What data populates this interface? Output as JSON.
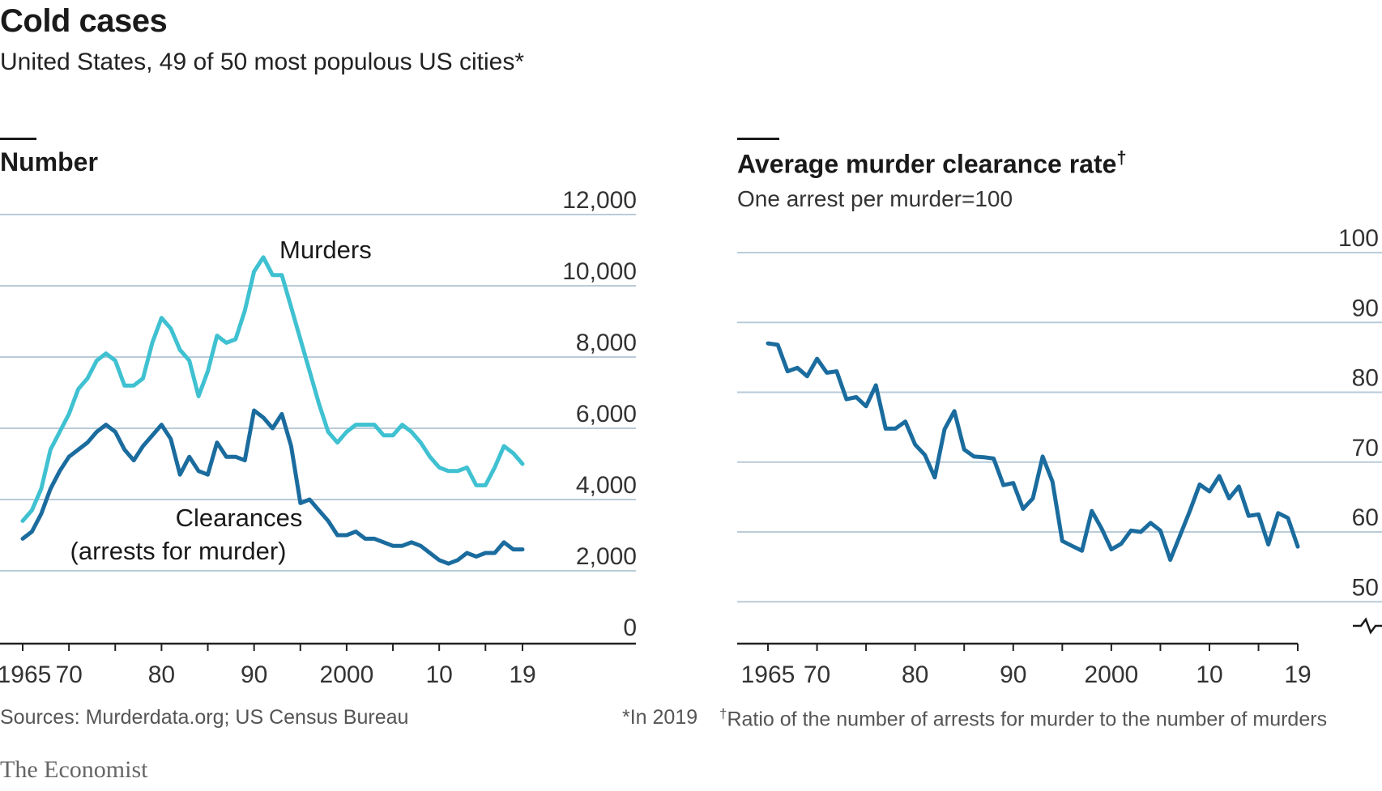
{
  "title": "Cold cases",
  "subtitle": "United States, 49 of 50 most populous US cities*",
  "sources": "Sources: Murderdata.org; US Census Bureau",
  "footnote_star": "*In 2019",
  "footnote_dagger_mark": "†",
  "footnote_dagger": "Ratio of the number of arrests for murder to the number of murders",
  "brand": "The Economist",
  "colors": {
    "murders": "#3fc1d1",
    "clearances": "#1b6c9e",
    "rate": "#1b6c9e",
    "grid": "#b9cbd8",
    "axis": "#222222"
  },
  "chart_data": [
    {
      "type": "line",
      "title": "Number",
      "ylim": [
        0,
        12000
      ],
      "y_ticks": [
        0,
        2000,
        4000,
        6000,
        8000,
        10000,
        12000
      ],
      "y_tick_labels": [
        "0",
        "2,000",
        "4,000",
        "6,000",
        "8,000",
        "10,000",
        "12,000"
      ],
      "x_tick_values": [
        1965,
        1970,
        1980,
        1990,
        2000,
        2010,
        2019
      ],
      "x_tick_labels": [
        "1965",
        "70",
        "80",
        "90",
        "2000",
        "10",
        "19"
      ],
      "series": [
        {
          "name": "Murders",
          "x": [
            1965,
            1966,
            1967,
            1968,
            1969,
            1970,
            1971,
            1972,
            1973,
            1974,
            1975,
            1976,
            1977,
            1978,
            1979,
            1980,
            1981,
            1982,
            1983,
            1984,
            1985,
            1986,
            1987,
            1988,
            1989,
            1990,
            1991,
            1992,
            1993,
            1994,
            1995,
            1996,
            1997,
            1998,
            1999,
            2000,
            2001,
            2002,
            2003,
            2004,
            2005,
            2006,
            2007,
            2008,
            2009,
            2010,
            2011,
            2012,
            2013,
            2014,
            2015,
            2016,
            2017,
            2018,
            2019
          ],
          "values": [
            3400,
            3700,
            4300,
            5400,
            5900,
            6400,
            7100,
            7400,
            7900,
            8100,
            7900,
            7200,
            7200,
            7400,
            8400,
            9100,
            8800,
            8200,
            7900,
            6900,
            7600,
            8600,
            8400,
            8500,
            9300,
            10400,
            10800,
            10300,
            10300,
            9400,
            8500,
            7600,
            6700,
            5900,
            5600,
            5900,
            6100,
            6100,
            6100,
            5800,
            5800,
            6100,
            5900,
            5600,
            5200,
            4900,
            4800,
            4800,
            4900,
            4400,
            4400,
            4900,
            5500,
            5300,
            5000
          ]
        },
        {
          "name": "Clearances",
          "label_lines": [
            "Clearances",
            "(arrests for murder)"
          ],
          "x": [
            1965,
            1966,
            1967,
            1968,
            1969,
            1970,
            1971,
            1972,
            1973,
            1974,
            1975,
            1976,
            1977,
            1978,
            1979,
            1980,
            1981,
            1982,
            1983,
            1984,
            1985,
            1986,
            1987,
            1988,
            1989,
            1990,
            1991,
            1992,
            1993,
            1994,
            1995,
            1996,
            1997,
            1998,
            1999,
            2000,
            2001,
            2002,
            2003,
            2004,
            2005,
            2006,
            2007,
            2008,
            2009,
            2010,
            2011,
            2012,
            2013,
            2014,
            2015,
            2016,
            2017,
            2018,
            2019
          ],
          "values": [
            2900,
            3100,
            3600,
            4300,
            4800,
            5200,
            5400,
            5600,
            5900,
            6100,
            5900,
            5400,
            5100,
            5500,
            5800,
            6100,
            5700,
            4700,
            5200,
            4800,
            4700,
            5600,
            5200,
            5200,
            5100,
            6500,
            6300,
            6000,
            6400,
            5500,
            3900,
            4000,
            3700,
            3400,
            3000,
            3000,
            3100,
            2900,
            2900,
            2800,
            2700,
            2700,
            2800,
            2700,
            2500,
            2300,
            2200,
            2300,
            2500,
            2400,
            2500,
            2500,
            2800,
            2600,
            2600
          ]
        }
      ]
    },
    {
      "type": "line",
      "title": "Average murder clearance rate",
      "title_mark": "†",
      "subtitle": "One arrest per murder=100",
      "ylim": [
        44,
        100
      ],
      "y_ticks": [
        50,
        60,
        70,
        80,
        90,
        100
      ],
      "y_tick_labels": [
        "50",
        "60",
        "70",
        "80",
        "90",
        "100"
      ],
      "axis_break": "-╱╲-",
      "x_tick_values": [
        1965,
        1970,
        1980,
        1990,
        2000,
        2010,
        2019
      ],
      "x_tick_labels": [
        "1965",
        "70",
        "80",
        "90",
        "2000",
        "10",
        "19"
      ],
      "series": [
        {
          "name": "Clearance rate",
          "x": [
            1965,
            1966,
            1967,
            1968,
            1969,
            1970,
            1971,
            1972,
            1973,
            1974,
            1975,
            1976,
            1977,
            1978,
            1979,
            1980,
            1981,
            1982,
            1983,
            1984,
            1985,
            1986,
            1987,
            1988,
            1989,
            1990,
            1991,
            1992,
            1993,
            1994,
            1995,
            1996,
            1997,
            1998,
            1999,
            2000,
            2001,
            2002,
            2003,
            2004,
            2005,
            2006,
            2007,
            2008,
            2009,
            2010,
            2011,
            2012,
            2013,
            2014,
            2015,
            2016,
            2017,
            2018,
            2019
          ],
          "values": [
            87,
            86.8,
            83,
            83.5,
            82.3,
            84.8,
            82.8,
            83,
            79,
            79.3,
            78,
            81,
            74.8,
            74.8,
            75.8,
            72.5,
            71,
            67.8,
            74.7,
            77.3,
            71.8,
            70.8,
            70.7,
            70.5,
            66.7,
            67,
            63.3,
            64.8,
            70.8,
            67.2,
            58.7,
            58,
            57.3,
            63,
            60.5,
            57.5,
            58.3,
            60.2,
            60,
            61.3,
            60.2,
            56,
            59.5,
            63,
            66.8,
            65.8,
            68,
            64.8,
            66.5,
            62.3,
            62.5,
            58.2,
            62.7,
            62,
            57.9
          ]
        }
      ]
    }
  ]
}
